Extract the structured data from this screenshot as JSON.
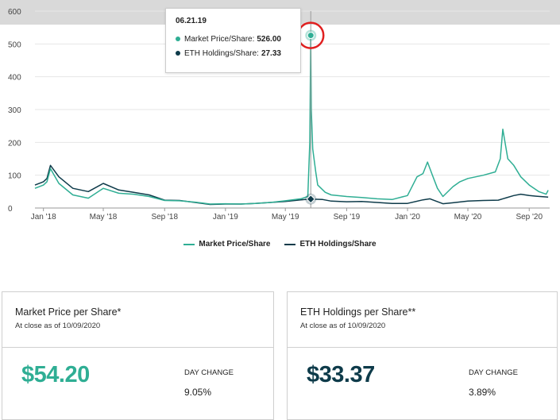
{
  "colors": {
    "market": "#2fae94",
    "eth": "#0e3b4a",
    "highlight": "#e02020",
    "grid": "#e6e6e6"
  },
  "chart_data": {
    "type": "line",
    "ylim": [
      0,
      600
    ],
    "y_ticks": [
      "0",
      "100",
      "200",
      "300",
      "400",
      "500",
      "600"
    ],
    "x_ticks": [
      "Jan '18",
      "May '18",
      "Sep '18",
      "Jan '19",
      "May '19",
      "Sep '19",
      "Jan '20",
      "May '20",
      "Sep '20"
    ],
    "x_tick_dates": [
      "2018-01-01",
      "2018-05-01",
      "2018-09-01",
      "2019-01-01",
      "2019-05-01",
      "2019-09-01",
      "2020-01-01",
      "2020-05-01",
      "2020-09-01"
    ],
    "x_range": [
      "2017-12-15",
      "2020-10-12"
    ],
    "grid": "horizontal",
    "legend": "bottom-center",
    "series": [
      {
        "name": "Market Price/Share",
        "color": "#2fae94",
        "points": [
          [
            "2017-12-15",
            60
          ],
          [
            "2018-01-01",
            70
          ],
          [
            "2018-01-08",
            80
          ],
          [
            "2018-01-15",
            120
          ],
          [
            "2018-02-01",
            75
          ],
          [
            "2018-03-01",
            40
          ],
          [
            "2018-04-01",
            30
          ],
          [
            "2018-05-01",
            60
          ],
          [
            "2018-06-01",
            45
          ],
          [
            "2018-07-01",
            42
          ],
          [
            "2018-08-01",
            35
          ],
          [
            "2018-09-01",
            23
          ],
          [
            "2018-10-01",
            22
          ],
          [
            "2018-11-01",
            18
          ],
          [
            "2018-12-01",
            12
          ],
          [
            "2019-01-01",
            13
          ],
          [
            "2019-02-01",
            12
          ],
          [
            "2019-03-01",
            14
          ],
          [
            "2019-04-01",
            17
          ],
          [
            "2019-05-01",
            22
          ],
          [
            "2019-06-01",
            28
          ],
          [
            "2019-06-15",
            35
          ],
          [
            "2019-06-19",
            200
          ],
          [
            "2019-06-21",
            526
          ],
          [
            "2019-06-22",
            300
          ],
          [
            "2019-06-25",
            180
          ],
          [
            "2019-07-01",
            110
          ],
          [
            "2019-07-05",
            70
          ],
          [
            "2019-07-20",
            48
          ],
          [
            "2019-08-01",
            40
          ],
          [
            "2019-09-01",
            35
          ],
          [
            "2019-10-01",
            32
          ],
          [
            "2019-11-01",
            28
          ],
          [
            "2019-12-01",
            26
          ],
          [
            "2020-01-01",
            38
          ],
          [
            "2020-01-20",
            95
          ],
          [
            "2020-02-01",
            105
          ],
          [
            "2020-02-10",
            140
          ],
          [
            "2020-02-20",
            100
          ],
          [
            "2020-03-01",
            60
          ],
          [
            "2020-03-12",
            35
          ],
          [
            "2020-04-01",
            65
          ],
          [
            "2020-04-15",
            80
          ],
          [
            "2020-05-01",
            90
          ],
          [
            "2020-06-01",
            100
          ],
          [
            "2020-06-25",
            110
          ],
          [
            "2020-07-05",
            150
          ],
          [
            "2020-07-10",
            240
          ],
          [
            "2020-07-20",
            150
          ],
          [
            "2020-08-01",
            130
          ],
          [
            "2020-08-15",
            95
          ],
          [
            "2020-09-01",
            70
          ],
          [
            "2020-09-20",
            50
          ],
          [
            "2020-10-05",
            42
          ],
          [
            "2020-10-09",
            54.2
          ]
        ]
      },
      {
        "name": "ETH Holdings/Share",
        "color": "#0e3b4a",
        "points": [
          [
            "2017-12-15",
            70
          ],
          [
            "2018-01-01",
            80
          ],
          [
            "2018-01-08",
            90
          ],
          [
            "2018-01-15",
            130
          ],
          [
            "2018-02-01",
            95
          ],
          [
            "2018-03-01",
            60
          ],
          [
            "2018-04-01",
            50
          ],
          [
            "2018-05-01",
            75
          ],
          [
            "2018-06-01",
            55
          ],
          [
            "2018-07-01",
            48
          ],
          [
            "2018-08-01",
            40
          ],
          [
            "2018-09-01",
            24
          ],
          [
            "2018-10-01",
            23
          ],
          [
            "2018-11-01",
            17
          ],
          [
            "2018-12-01",
            11
          ],
          [
            "2019-01-01",
            12
          ],
          [
            "2019-02-01",
            12
          ],
          [
            "2019-03-01",
            14
          ],
          [
            "2019-04-01",
            17
          ],
          [
            "2019-05-01",
            20
          ],
          [
            "2019-06-01",
            25
          ],
          [
            "2019-06-21",
            27.33
          ],
          [
            "2019-07-15",
            26
          ],
          [
            "2019-08-01",
            21
          ],
          [
            "2019-09-01",
            19
          ],
          [
            "2019-10-01",
            20
          ],
          [
            "2019-11-01",
            17
          ],
          [
            "2019-12-01",
            14
          ],
          [
            "2020-01-01",
            14
          ],
          [
            "2020-02-01",
            25
          ],
          [
            "2020-02-15",
            28
          ],
          [
            "2020-03-12",
            13
          ],
          [
            "2020-04-01",
            16
          ],
          [
            "2020-05-01",
            21
          ],
          [
            "2020-06-01",
            23
          ],
          [
            "2020-07-01",
            24
          ],
          [
            "2020-08-01",
            38
          ],
          [
            "2020-08-15",
            42
          ],
          [
            "2020-09-01",
            38
          ],
          [
            "2020-09-15",
            36
          ],
          [
            "2020-10-09",
            33.37
          ]
        ]
      }
    ],
    "tooltip": {
      "date": "06.21.19",
      "date_iso": "2019-06-21",
      "rows": [
        {
          "label": "Market Price/Share:",
          "value": "526.00",
          "y": 526
        },
        {
          "label": "ETH Holdings/Share:",
          "value": "27.33",
          "y": 27.33
        }
      ]
    }
  },
  "legend": [
    {
      "label": "Market Price/Share",
      "color": "#2fae94"
    },
    {
      "label": "ETH Holdings/Share",
      "color": "#0e3b4a"
    }
  ],
  "cards": {
    "market": {
      "title": "Market Price per Share*",
      "subtitle": "At close as of 10/09/2020",
      "value": "$54.20",
      "value_color": "#2fae94",
      "change_label": "DAY CHANGE",
      "change_value": "9.05%"
    },
    "eth": {
      "title": "ETH Holdings per Share**",
      "subtitle": "At close as of 10/09/2020",
      "value": "$33.37",
      "value_color": "#0e3b4a",
      "change_label": "DAY CHANGE",
      "change_value": "3.89%"
    }
  }
}
